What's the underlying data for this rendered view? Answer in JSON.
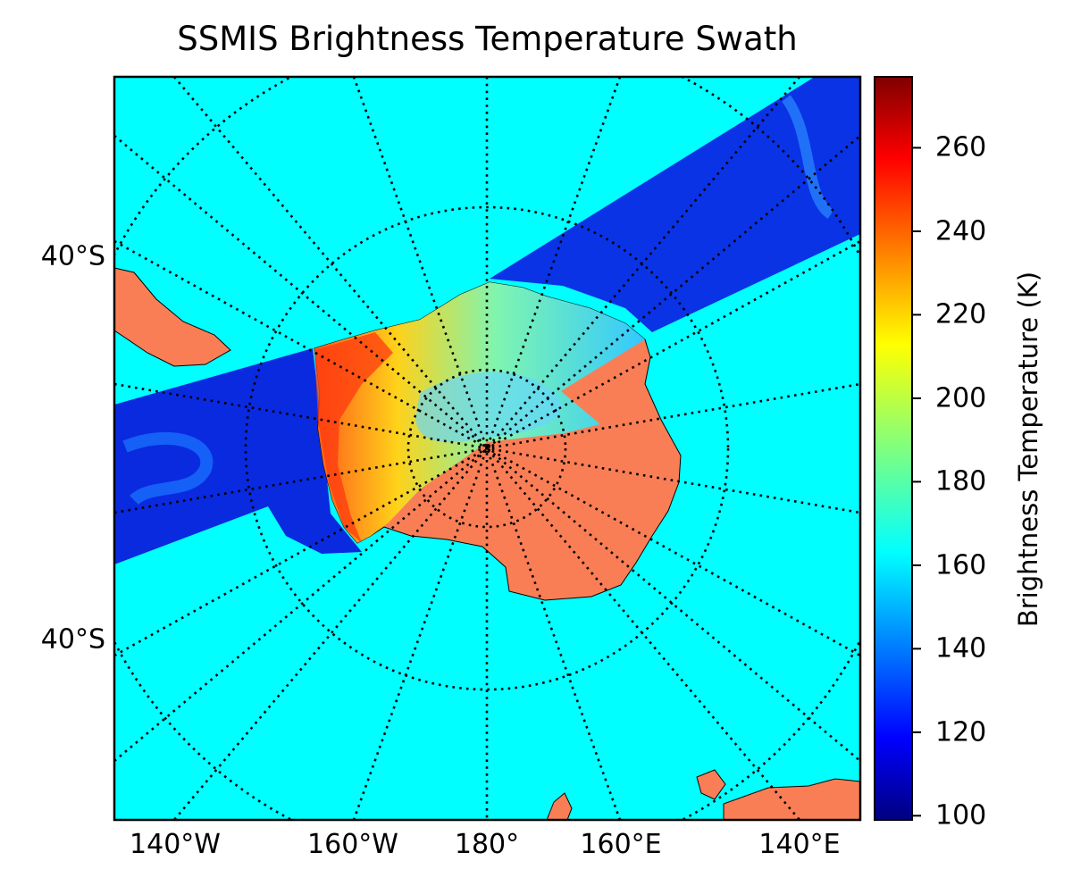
{
  "title": "SSMIS Brightness Temperature Swath",
  "map": {
    "projection": "south-polar-stereographic",
    "ocean_color": "#00ffff",
    "land_color": "#f97e56",
    "graticule_style": "dotted",
    "graticule_color": "#000000"
  },
  "lon_labels": [
    "140°W",
    "160°W",
    "180°",
    "160°E",
    "140°E"
  ],
  "lat_labels": [
    "40°S",
    "40°S"
  ],
  "colorbar": {
    "label": "Brightness Temperature (K)",
    "colormap": "jet",
    "vmin": 99,
    "vmax": 277,
    "ticks": [
      "100",
      "120",
      "140",
      "160",
      "180",
      "200",
      "220",
      "240",
      "260"
    ]
  }
}
